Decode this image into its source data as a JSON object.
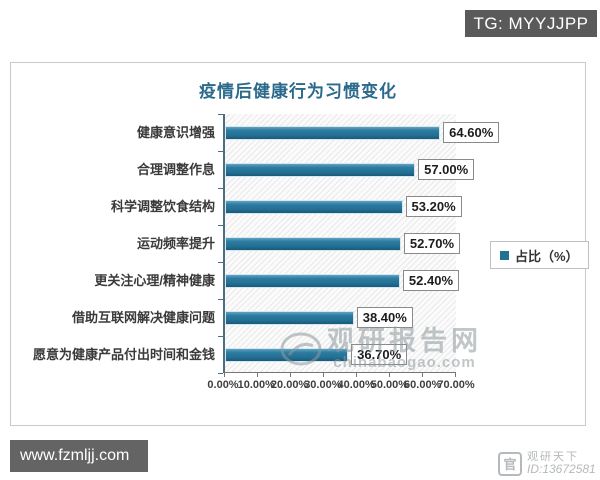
{
  "overlays": {
    "tg_badge": "TG: MYYJJPP",
    "site_badge": "www.fzmljj.com",
    "watermark_center": {
      "text": "观研报告网",
      "url": "chinabaogao.com"
    },
    "watermark_corner": {
      "name": "观研天下",
      "id": "ID:13672581"
    }
  },
  "chart_data": {
    "type": "bar",
    "orientation": "horizontal",
    "title": "疫情后健康行为习惯变化",
    "legend": {
      "label": "占比（%）",
      "position": "right"
    },
    "categories": [
      "健康意识增强",
      "合理调整作息",
      "科学调整饮食结构",
      "运动频率提升",
      "更关注心理/精神健康",
      "借助互联网解决健康问题",
      "愿意为健康产品付出时间和金钱"
    ],
    "values": [
      64.6,
      57.0,
      53.2,
      52.7,
      52.4,
      38.4,
      36.7
    ],
    "value_labels": [
      "64.60%",
      "57.00%",
      "53.20%",
      "52.70%",
      "52.40%",
      "38.40%",
      "36.70%"
    ],
    "x_ticks": [
      "0.00%",
      "10.00%",
      "20.00%",
      "30.00%",
      "40.00%",
      "50.00%",
      "60.00%",
      "70.00%"
    ],
    "xlim": [
      0,
      70
    ],
    "grid": "hatched-plot-background",
    "bar_color": "#27789e",
    "title_color": "#2b6a8c"
  }
}
